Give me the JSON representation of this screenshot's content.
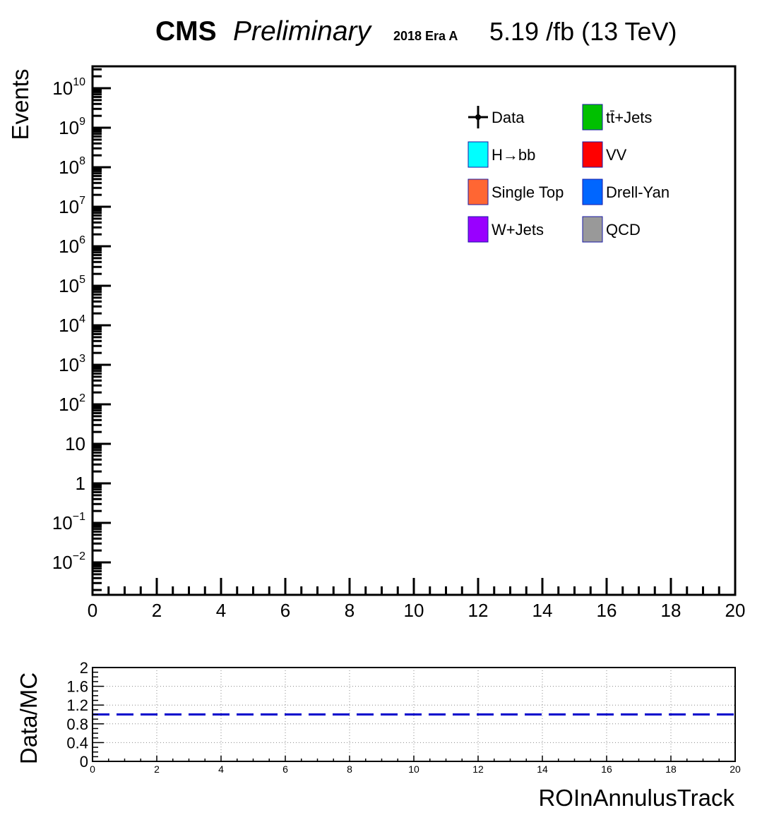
{
  "header": {
    "cms": "CMS",
    "preliminary": "Preliminary",
    "era": "2018 Era A",
    "lumi": "5.19 /fb (13 TeV)"
  },
  "chart_data": [
    {
      "type": "bar",
      "subtype": "stacked histogram (no entries)",
      "ylabel": "Events",
      "xlim": [
        0,
        20
      ],
      "ylog": true,
      "ylim_exp": [
        -2,
        10
      ],
      "x_ticks": [
        "0",
        "2",
        "4",
        "6",
        "8",
        "10",
        "12",
        "14",
        "16",
        "18",
        "20"
      ],
      "y_ticks": [
        "10^-2",
        "10^-1",
        "1",
        "10",
        "10^2",
        "10^3",
        "10^4",
        "10^5",
        "10^6",
        "10^7",
        "10^8",
        "10^9",
        "10^10"
      ],
      "legend_placement": "top-right",
      "legend": [
        {
          "label": "Data",
          "marker": "point",
          "color": "#000000"
        },
        {
          "label": "tt̄+Jets",
          "marker": "box",
          "color": "#00c000"
        },
        {
          "label": "H→bb",
          "marker": "box",
          "color": "#00ffff"
        },
        {
          "label": "VV",
          "marker": "box",
          "color": "#ff0000"
        },
        {
          "label": "Single Top",
          "marker": "box",
          "color": "#ff6633"
        },
        {
          "label": "Drell-Yan",
          "marker": "box",
          "color": "#0066ff"
        },
        {
          "label": "W+Jets",
          "marker": "box",
          "color": "#9900ff"
        },
        {
          "label": "QCD",
          "marker": "box",
          "color": "#999999"
        }
      ],
      "series": []
    },
    {
      "type": "line",
      "subtype": "ratio panel",
      "xlabel": "ROInAnnulusTrack",
      "ylabel": "Data/MC",
      "xlim": [
        0,
        20
      ],
      "ylim": [
        0,
        2
      ],
      "x_ticks": [
        "0",
        "2",
        "4",
        "6",
        "8",
        "10",
        "12",
        "14",
        "16",
        "18",
        "20"
      ],
      "y_ticks": [
        "0",
        "0.4",
        "0.8",
        "1.2",
        "1.6",
        "2"
      ],
      "grid": true,
      "reference_line": {
        "y": 1.0,
        "style": "dashed",
        "color": "#0000cc"
      }
    }
  ]
}
